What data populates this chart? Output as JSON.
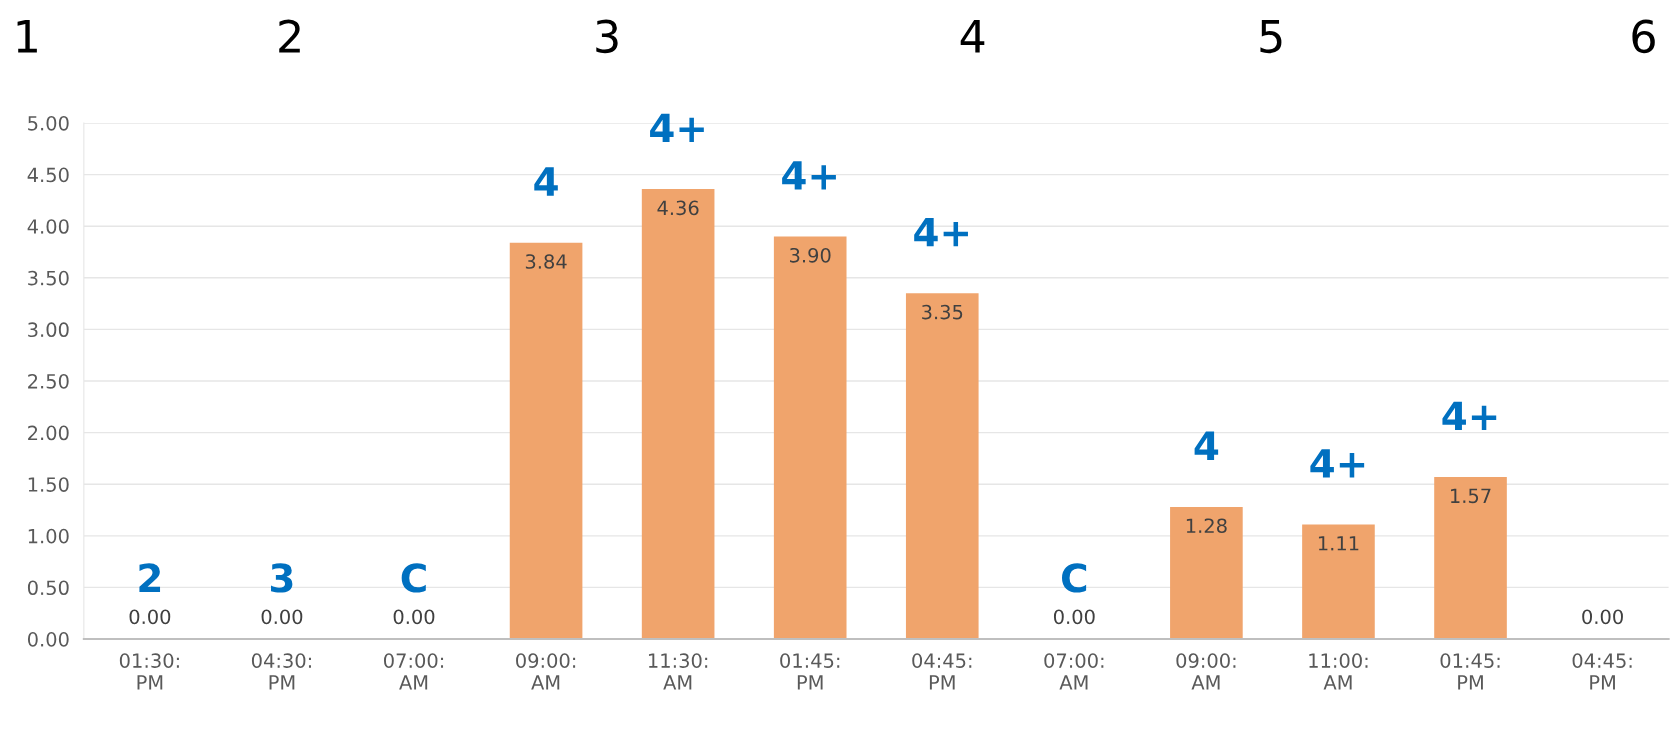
{
  "chart_data": {
    "type": "bar",
    "categories": [
      "01:30: PM",
      "04:30: PM",
      "07:00: AM",
      "09:00: AM",
      "11:30: AM",
      "01:45: PM",
      "04:45: PM",
      "07:00: AM",
      "09:00: AM",
      "11:00: AM",
      "01:45: PM",
      "04:45: PM"
    ],
    "values": [
      0,
      0,
      0,
      3.84,
      4.36,
      3.9,
      3.35,
      0,
      1.28,
      1.11,
      1.57,
      0
    ],
    "value_labels": [
      "0.00",
      "0.00",
      "0.00",
      "3.84",
      "4.36",
      "3.90",
      "3.35",
      "0.00",
      "1.28",
      "1.11",
      "1.57",
      "0.00"
    ],
    "color": "#f0a46c",
    "ylim": [
      0,
      5
    ],
    "yticks": [
      {
        "value": 0,
        "label": "0.00"
      },
      {
        "value": 0.5,
        "label": "0.50"
      },
      {
        "value": 1,
        "label": "1.00"
      },
      {
        "value": 1.5,
        "label": "1.50"
      },
      {
        "value": 2,
        "label": "2.00"
      },
      {
        "value": 2.5,
        "label": "2.50"
      },
      {
        "value": 3,
        "label": "3.00"
      },
      {
        "value": 3.5,
        "label": "3.50"
      },
      {
        "value": 4,
        "label": "4.00"
      },
      {
        "value": 4.5,
        "label": "4.50"
      },
      {
        "value": 5,
        "label": "5.00"
      }
    ],
    "grid": "y",
    "annotations": [
      "1",
      "2",
      "3",
      "4",
      "5",
      "6",
      "2",
      "3",
      "C",
      "4",
      "4+",
      "4+",
      "4+",
      "C",
      "4",
      "4+",
      "4+"
    ]
  }
}
